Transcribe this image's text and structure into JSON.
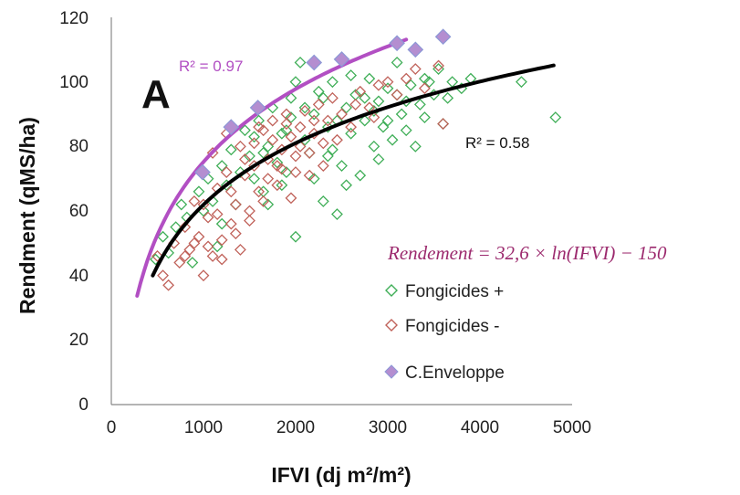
{
  "chart_data": {
    "type": "scatter",
    "panel_label": "A",
    "xlabel": "IFVI (dj m²/m²)",
    "ylabel": "Rendment (qMS/ha)",
    "xlim": [
      0,
      5000
    ],
    "ylim": [
      0,
      120
    ],
    "xticks": [
      "0",
      "1000",
      "2000",
      "3000",
      "4000",
      "5000"
    ],
    "yticks": [
      "0",
      "20",
      "40",
      "60",
      "80",
      "100",
      "120"
    ],
    "grid": false,
    "legend_position": "bottom-right",
    "formula": "Rendement = 32,6 × ln(IFVI) − 150",
    "colors": {
      "fongicides_plus": "#3fae57",
      "fongicides_minus": "#c0625a",
      "enveloppe_fill": "#b48ed0",
      "enveloppe_stroke": "#8d98d6",
      "enveloppe_curve": "#b24fc3",
      "trend_curve": "#000000"
    },
    "series": [
      {
        "name": "Fongicides +",
        "marker": "hollow-diamond",
        "color": "#3fae57",
        "points": [
          [
            480,
            45
          ],
          [
            560,
            52
          ],
          [
            620,
            47
          ],
          [
            700,
            55
          ],
          [
            760,
            62
          ],
          [
            820,
            58
          ],
          [
            880,
            44
          ],
          [
            950,
            66
          ],
          [
            1000,
            60
          ],
          [
            1050,
            70
          ],
          [
            1100,
            63
          ],
          [
            1150,
            49
          ],
          [
            1200,
            74
          ],
          [
            1250,
            68
          ],
          [
            1300,
            79
          ],
          [
            1350,
            62
          ],
          [
            1400,
            72
          ],
          [
            1450,
            85
          ],
          [
            1500,
            77
          ],
          [
            1550,
            70
          ],
          [
            1600,
            88
          ],
          [
            1650,
            66
          ],
          [
            1700,
            80
          ],
          [
            1750,
            92
          ],
          [
            1800,
            75
          ],
          [
            1850,
            84
          ],
          [
            1900,
            72
          ],
          [
            1950,
            95
          ],
          [
            2000,
            52
          ],
          [
            2050,
            106
          ],
          [
            2100,
            82
          ],
          [
            2150,
            78
          ],
          [
            2200,
            90
          ],
          [
            2250,
            97
          ],
          [
            2300,
            63
          ],
          [
            2350,
            86
          ],
          [
            2400,
            100
          ],
          [
            2450,
            59
          ],
          [
            2500,
            74
          ],
          [
            2550,
            92
          ],
          [
            2600,
            84
          ],
          [
            2650,
            96
          ],
          [
            2700,
            71
          ],
          [
            2750,
            88
          ],
          [
            2800,
            101
          ],
          [
            2850,
            80
          ],
          [
            2900,
            94
          ],
          [
            2950,
            86
          ],
          [
            3000,
            98
          ],
          [
            3050,
            82
          ],
          [
            3100,
            106
          ],
          [
            3150,
            90
          ],
          [
            3200,
            85
          ],
          [
            3250,
            99
          ],
          [
            3300,
            80
          ],
          [
            3350,
            93
          ],
          [
            3400,
            89
          ],
          [
            3450,
            100
          ],
          [
            3500,
            96
          ],
          [
            3550,
            104
          ],
          [
            3600,
            87
          ],
          [
            3650,
            95
          ],
          [
            3700,
            100
          ],
          [
            3800,
            98
          ],
          [
            3900,
            101
          ],
          [
            4450,
            100
          ],
          [
            4820,
            89
          ],
          [
            1900,
            85
          ],
          [
            2100,
            92
          ],
          [
            2300,
            95
          ],
          [
            2600,
            102
          ],
          [
            2400,
            79
          ],
          [
            2200,
            70
          ],
          [
            1850,
            68
          ],
          [
            1700,
            62
          ],
          [
            2550,
            68
          ],
          [
            2900,
            76
          ],
          [
            3200,
            94
          ],
          [
            2000,
            100
          ],
          [
            2750,
            95
          ],
          [
            3400,
            101
          ],
          [
            1550,
            83
          ],
          [
            1650,
            78
          ],
          [
            2450,
            88
          ],
          [
            2850,
            91
          ],
          [
            3100,
            96
          ],
          [
            1950,
            89
          ],
          [
            2350,
            77
          ],
          [
            3000,
            88
          ],
          [
            1200,
            56
          ]
        ]
      },
      {
        "name": "Fongicides -",
        "marker": "hollow-diamond",
        "color": "#c0625a",
        "points": [
          [
            500,
            46
          ],
          [
            560,
            40
          ],
          [
            620,
            37
          ],
          [
            680,
            50
          ],
          [
            740,
            44
          ],
          [
            800,
            55
          ],
          [
            850,
            48
          ],
          [
            900,
            63
          ],
          [
            950,
            52
          ],
          [
            1000,
            40
          ],
          [
            1050,
            58
          ],
          [
            1100,
            46
          ],
          [
            1150,
            67
          ],
          [
            1200,
            51
          ],
          [
            1250,
            72
          ],
          [
            1300,
            56
          ],
          [
            1350,
            62
          ],
          [
            1400,
            48
          ],
          [
            1450,
            76
          ],
          [
            1500,
            60
          ],
          [
            1550,
            81
          ],
          [
            1600,
            66
          ],
          [
            1650,
            85
          ],
          [
            1700,
            70
          ],
          [
            1750,
            88
          ],
          [
            1800,
            74
          ],
          [
            1850,
            79
          ],
          [
            1900,
            90
          ],
          [
            1950,
            83
          ],
          [
            2000,
            72
          ],
          [
            2050,
            86
          ],
          [
            2100,
            91
          ],
          [
            2150,
            78
          ],
          [
            2200,
            84
          ],
          [
            2250,
            93
          ],
          [
            2300,
            81
          ],
          [
            2350,
            88
          ],
          [
            2400,
            95
          ],
          [
            2500,
            90
          ],
          [
            2600,
            86
          ],
          [
            2700,
            97
          ],
          [
            2800,
            92
          ],
          [
            2900,
            99
          ],
          [
            3000,
            100
          ],
          [
            3100,
            96
          ],
          [
            3300,
            104
          ],
          [
            3400,
            98
          ],
          [
            3550,
            105
          ],
          [
            3600,
            87
          ],
          [
            1100,
            78
          ],
          [
            1250,
            84
          ],
          [
            1400,
            80
          ],
          [
            1600,
            86
          ],
          [
            1750,
            82
          ],
          [
            1900,
            87
          ],
          [
            2050,
            80
          ],
          [
            2200,
            88
          ],
          [
            1000,
            62
          ],
          [
            1150,
            59
          ],
          [
            1300,
            66
          ],
          [
            1450,
            71
          ],
          [
            1700,
            76
          ],
          [
            1850,
            73
          ],
          [
            2000,
            77
          ],
          [
            2150,
            71
          ],
          [
            800,
            46
          ],
          [
            900,
            50
          ],
          [
            1050,
            49
          ],
          [
            1200,
            45
          ],
          [
            1350,
            53
          ],
          [
            1500,
            57
          ],
          [
            1650,
            63
          ],
          [
            1800,
            68
          ],
          [
            1950,
            64
          ],
          [
            2300,
            74
          ],
          [
            2450,
            82
          ],
          [
            2650,
            93
          ],
          [
            2850,
            89
          ],
          [
            3200,
            101
          ],
          [
            1550,
            74
          ]
        ]
      },
      {
        "name": "C.Enveloppe",
        "marker": "filled-diamond",
        "color": "#b48ed0",
        "points": [
          [
            990,
            72
          ],
          [
            1300,
            86
          ],
          [
            1590,
            92
          ],
          [
            2200,
            106
          ],
          [
            2500,
            107
          ],
          [
            3100,
            112
          ],
          [
            3300,
            110
          ],
          [
            3600,
            114
          ]
        ]
      }
    ],
    "curves": [
      {
        "name": "enveloppe",
        "coef": 32.6,
        "intercept": -150,
        "x_range": [
          280,
          3200
        ],
        "r2_label": "R² = 0.97",
        "color": "#b24fc3"
      },
      {
        "name": "tendance",
        "coef": 27.5,
        "intercept": -128,
        "x_range": [
          450,
          4800
        ],
        "r2_label": "R² = 0.58",
        "color": "#000000"
      }
    ]
  }
}
